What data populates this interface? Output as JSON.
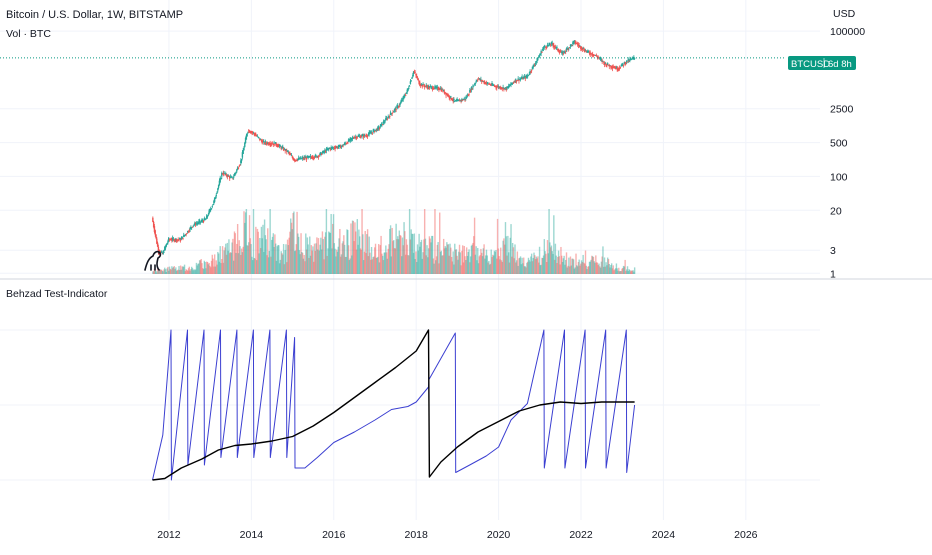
{
  "chart_data": {
    "type": "candlestick",
    "symbol_title": "Bitcoin / U.S. Dollar, 1W, BITSTAMP",
    "volume_label": "Vol · BTC",
    "indicator_title": "Behzad Test-Indicator",
    "price_axis": {
      "currency": "USD",
      "scale": "log",
      "tick_labels": [
        "100000",
        "2500",
        "500",
        "100",
        "20",
        "3",
        "1"
      ],
      "tick_values": [
        100000,
        2500,
        500,
        100,
        20,
        3,
        1
      ],
      "ylim": [
        0.8,
        300000
      ]
    },
    "x_axis": {
      "tick_labels": [
        "2012",
        "2014",
        "2016",
        "2018",
        "2020",
        "2022",
        "2024",
        "2026"
      ],
      "tick_values": [
        2012,
        2014,
        2016,
        2018,
        2020,
        2022,
        2024,
        2026
      ],
      "xlim": [
        2007.9,
        2027.8
      ]
    },
    "price_tag": {
      "symbol": "BTCUSD",
      "countdown": "6d 8h",
      "value": 28000
    },
    "price_series": {
      "name": "",
      "x": [
        2011.6,
        2011.75,
        2011.85,
        2012.0,
        2012.3,
        2012.6,
        2012.9,
        2013.1,
        2013.3,
        2013.55,
        2013.75,
        2013.92,
        2014.05,
        2014.3,
        2014.6,
        2014.9,
        2015.05,
        2015.3,
        2015.6,
        2015.9,
        2016.2,
        2016.5,
        2016.8,
        2017.1,
        2017.4,
        2017.6,
        2017.8,
        2017.95,
        2018.1,
        2018.3,
        2018.6,
        2018.95,
        2019.2,
        2019.5,
        2019.7,
        2019.95,
        2020.2,
        2020.4,
        2020.7,
        2020.95,
        2021.1,
        2021.3,
        2021.55,
        2021.85,
        2022.1,
        2022.4,
        2022.6,
        2022.9,
        2023.1,
        2023.3
      ],
      "values": [
        14,
        3,
        2.5,
        5,
        5,
        10,
        13,
        30,
        120,
        90,
        200,
        900,
        800,
        500,
        470,
        320,
        220,
        240,
        260,
        380,
        420,
        650,
        700,
        1000,
        2000,
        3000,
        6000,
        15000,
        8000,
        7000,
        6500,
        3500,
        4000,
        10500,
        8500,
        7200,
        6500,
        9500,
        11500,
        26000,
        46000,
        55000,
        34000,
        60000,
        40000,
        30000,
        21000,
        16800,
        23000,
        28000
      ]
    },
    "volume_series": {
      "name": "",
      "x": [
        2011.6,
        2012.0,
        2012.5,
        2013.0,
        2013.3,
        2013.6,
        2013.9,
        2014.0,
        2014.3,
        2014.6,
        2014.9,
        2015.0,
        2015.3,
        2015.6,
        2015.9,
        2016.2,
        2016.5,
        2016.8,
        2017.0,
        2017.3,
        2017.6,
        2017.9,
        2018.1,
        2018.4,
        2018.7,
        2019.0,
        2019.3,
        2019.6,
        2019.9,
        2020.2,
        2020.5,
        2020.8,
        2021.1,
        2021.4,
        2021.7,
        2022.0,
        2022.3,
        2022.6,
        2022.9,
        2023.2
      ],
      "values": [
        0.4,
        0.6,
        0.8,
        1.5,
        2.6,
        3.5,
        6.0,
        3.8,
        4.5,
        3.0,
        2.8,
        6.5,
        3.2,
        3.0,
        5.2,
        3.4,
        4.5,
        3.6,
        2.5,
        4.0,
        4.6,
        3.4,
        3.6,
        3.0,
        2.8,
        2.4,
        2.6,
        2.8,
        2.2,
        3.2,
        1.8,
        1.6,
        2.8,
        2.4,
        1.6,
        1.2,
        1.6,
        1.4,
        0.8,
        0.6
      ]
    },
    "indicator_series": [
      {
        "name": "",
        "color": "#3b3fd1",
        "x": [
          2011.6,
          2011.85,
          2012.05,
          2012.06,
          2012.45,
          2012.46,
          2012.85,
          2012.86,
          2013.25,
          2013.26,
          2013.65,
          2013.66,
          2014.05,
          2014.06,
          2014.45,
          2014.46,
          2014.85,
          2014.86,
          2015.05,
          2015.06,
          2015.3,
          2015.6,
          2016.0,
          2016.5,
          2017.0,
          2017.4,
          2017.8,
          2018.0,
          2018.3,
          2018.31,
          2018.95,
          2018.96,
          2019.3,
          2019.7,
          2020.0,
          2020.3,
          2020.7,
          2021.1,
          2021.11,
          2021.6,
          2021.61,
          2022.1,
          2022.11,
          2022.6,
          2022.61,
          2023.1,
          2023.11,
          2023.3
        ],
        "values": [
          0.0,
          0.3,
          1.0,
          0.0,
          1.0,
          0.1,
          1.0,
          0.1,
          1.0,
          0.15,
          1.0,
          0.15,
          1.0,
          0.15,
          1.0,
          0.15,
          1.0,
          0.15,
          0.95,
          0.08,
          0.08,
          0.15,
          0.25,
          0.32,
          0.4,
          0.47,
          0.49,
          0.52,
          0.62,
          0.67,
          0.98,
          0.05,
          0.1,
          0.16,
          0.22,
          0.4,
          0.51,
          1.0,
          0.08,
          1.0,
          0.08,
          1.0,
          0.08,
          1.0,
          0.08,
          1.0,
          0.05,
          0.5
        ]
      },
      {
        "name": "",
        "color": "#000000",
        "x": [
          2011.6,
          2011.9,
          2012.3,
          2012.8,
          2013.2,
          2013.6,
          2014.0,
          2014.5,
          2015.0,
          2015.5,
          2016.0,
          2016.5,
          2017.0,
          2017.5,
          2018.0,
          2018.3,
          2018.32,
          2018.6,
          2019.0,
          2019.5,
          2020.0,
          2020.5,
          2021.0,
          2021.5,
          2022.0,
          2022.5,
          2023.0,
          2023.3
        ],
        "values": [
          0.0,
          0.01,
          0.08,
          0.14,
          0.2,
          0.23,
          0.24,
          0.26,
          0.29,
          0.36,
          0.45,
          0.55,
          0.65,
          0.75,
          0.86,
          1.0,
          0.02,
          0.12,
          0.22,
          0.32,
          0.39,
          0.46,
          0.5,
          0.52,
          0.51,
          0.52,
          0.52,
          0.52
        ]
      }
    ]
  }
}
